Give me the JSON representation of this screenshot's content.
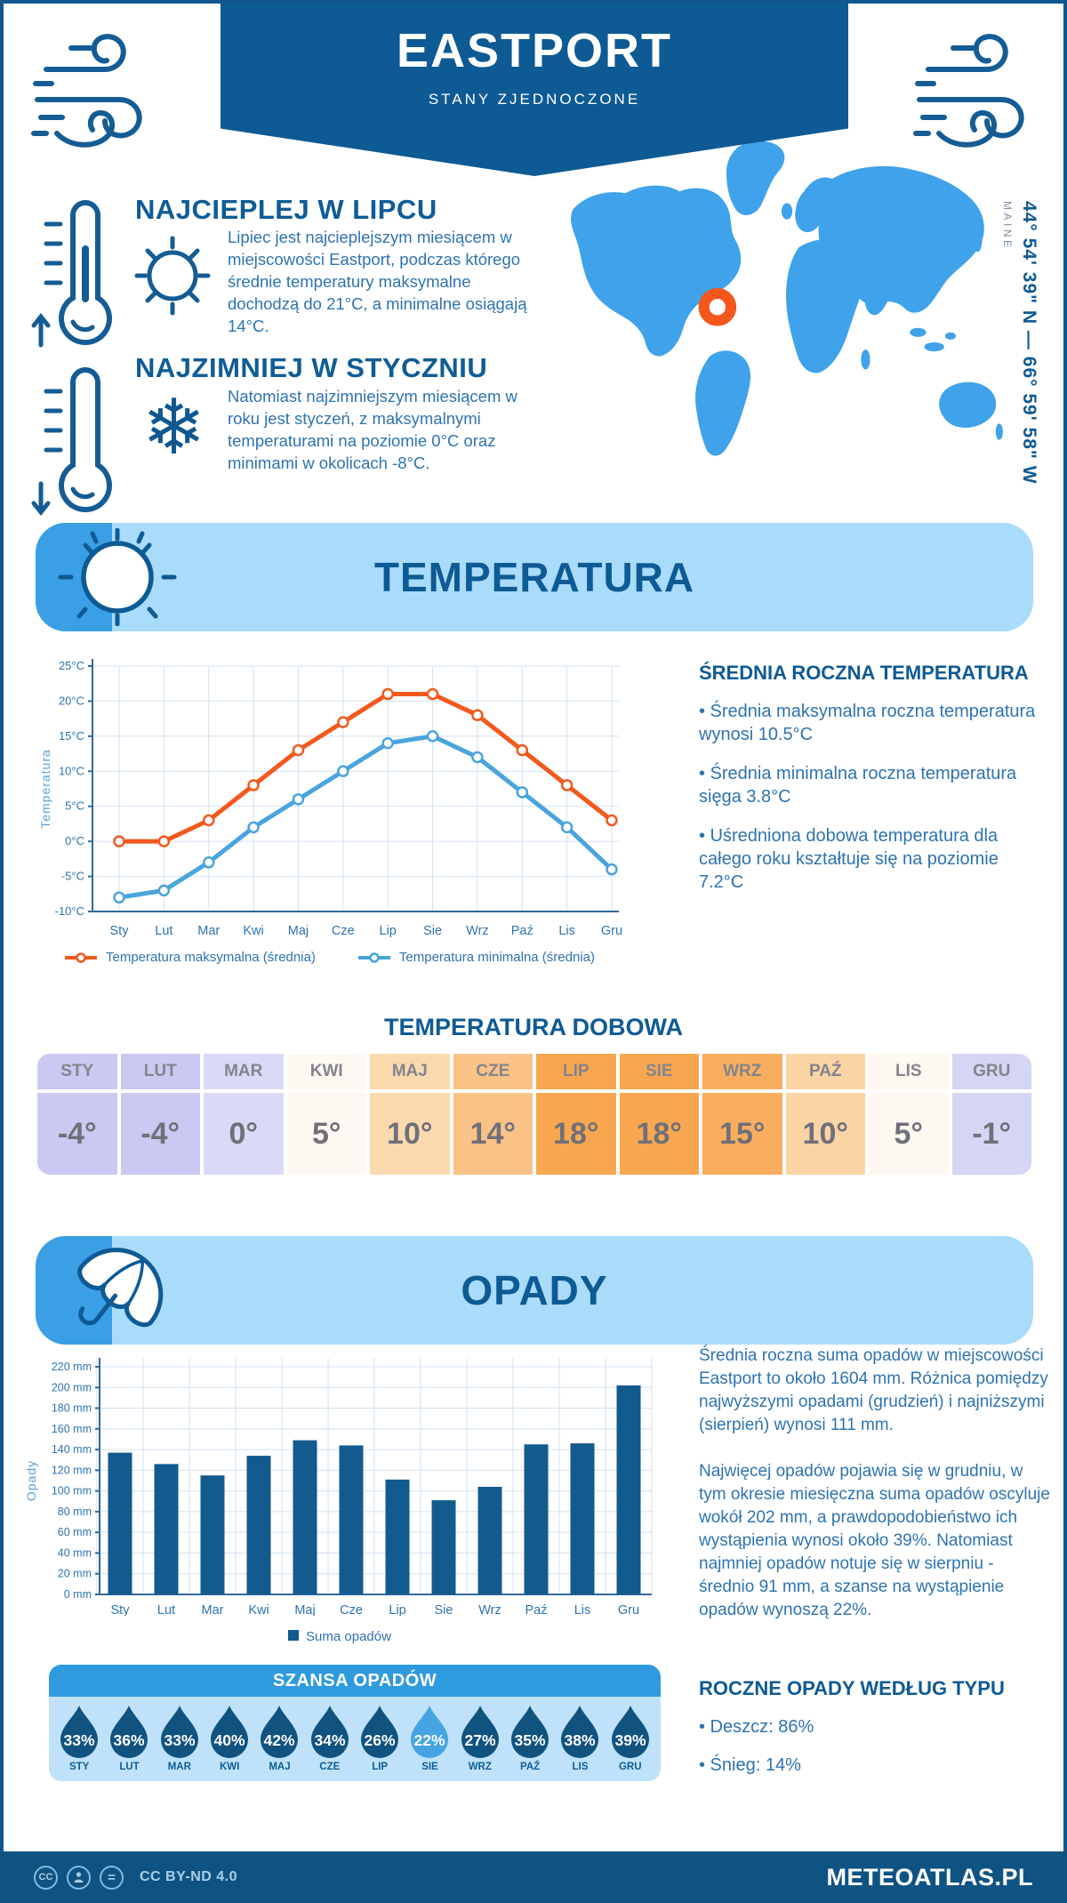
{
  "colors": {
    "brand": "#0e5a94",
    "medium_blue": "#3b9fe6",
    "light_banner": "#a9dbfa",
    "body_text": "#2e73b0",
    "map_land": "#3fa2ea",
    "marker": "#f4571c",
    "bar": "#135a8e",
    "droplet": "#11527f",
    "droplet_highlight": "#47a4e2",
    "footer_bg": "#0f5383",
    "orange_line": "#f4581d",
    "blue_line": "#4aa4dd"
  },
  "header": {
    "title": "EASTPORT",
    "subtitle": "STANY ZJEDNOCZONE"
  },
  "warm": {
    "title": "NAJCIEPLEJ W LIPCU",
    "text": "Lipiec jest najcieplejszym miesiącem w miejscowości Eastport, podczas którego średnie temperatury maksymalne dochodzą do 21°C, a minimalne osiągają 14°C."
  },
  "cold": {
    "title": "NAJZIMNIEJ W STYCZNIU",
    "text": "Natomiast najzimniejszym miesiącem w roku jest styczeń, z maksymalnymi temperaturami na poziomie 0°C oraz minimami w okolicach -8°C."
  },
  "map": {
    "coordinates": "44° 54' 39\" N — 66° 59' 58\" W",
    "region": "MAINE"
  },
  "temperature": {
    "banner_title": "TEMPERATURA",
    "summary_title": "ŚREDNIA ROCZNA TEMPERATURA",
    "summary_bullets": [
      "• Średnia maksymalna roczna temperatura wynosi 10.5°C",
      "• Średnia minimalna roczna temperatura sięga 3.8°C",
      "• Uśredniona dobowa temperatura dla całego roku kształtuje się na poziomie 7.2°C"
    ],
    "daily_title": "TEMPERATURA DOBOWA",
    "daily": {
      "months": [
        "STY",
        "LUT",
        "MAR",
        "KWI",
        "MAJ",
        "CZE",
        "LIP",
        "SIE",
        "WRZ",
        "PAŹ",
        "LIS",
        "GRU"
      ],
      "values": [
        "-4°",
        "-4°",
        "0°",
        "5°",
        "10°",
        "14°",
        "18°",
        "18°",
        "15°",
        "10°",
        "5°",
        "-1°"
      ],
      "colors": [
        "#c9c9f1",
        "#c9c9f1",
        "#dadaf6",
        "#fdf8f2",
        "#fbd9ae",
        "#fac286",
        "#f8a750",
        "#f8a750",
        "#f9ae5f",
        "#fbd4a6",
        "#fdf8f1",
        "#d5d5f4"
      ]
    }
  },
  "precipitation": {
    "banner_title": "OPADY",
    "paragraphs": [
      "Średnia roczna suma opadów w miejscowości Eastport to około 1604 mm. Różnica pomiędzy najwyższymi opadami (grudzień) i najniższymi (sierpień) wynosi 111 mm.",
      "Najwięcej opadów pojawia się w grudniu, w tym okresie miesięczna suma opadów oscyluje wokół 202 mm, a prawdopodobieństwo ich wystąpienia wynosi około 39%. Natomiast najmniej opadów notuje się w sierpniu - średnio 91 mm, a szanse na wystąpienie opadów wynoszą 22%."
    ],
    "chance_title": "SZANSA OPADÓW",
    "chance": {
      "months": [
        "STY",
        "LUT",
        "MAR",
        "KWI",
        "MAJ",
        "CZE",
        "LIP",
        "SIE",
        "WRZ",
        "PAŹ",
        "LIS",
        "GRU"
      ],
      "values": [
        "33%",
        "36%",
        "33%",
        "40%",
        "42%",
        "34%",
        "26%",
        "22%",
        "27%",
        "35%",
        "38%",
        "39%"
      ],
      "highlight_index": 7
    },
    "type_title": "ROCZNE OPADY WEDŁUG TYPU",
    "type_bullets": [
      "• Deszcz: 86%",
      "• Śnieg: 14%"
    ]
  },
  "footer": {
    "license": "CC BY-ND 4.0",
    "site": "METEOATLAS.PL"
  },
  "chart_data": [
    {
      "type": "line",
      "title": "Temperatura",
      "categories": [
        "Sty",
        "Lut",
        "Mar",
        "Kwi",
        "Maj",
        "Cze",
        "Lip",
        "Sie",
        "Wrz",
        "Paź",
        "Lis",
        "Gru"
      ],
      "series": [
        {
          "name": "Temperatura maksymalna (średnia)",
          "color": "#f4581d",
          "values": [
            0,
            0,
            3,
            8,
            13,
            17,
            21,
            21,
            18,
            13,
            8,
            3
          ]
        },
        {
          "name": "Temperatura minimalna (średnia)",
          "color": "#4aa4dd",
          "values": [
            -8,
            -7,
            -3,
            2,
            6,
            10,
            14,
            15,
            12,
            7,
            2,
            -4
          ]
        }
      ],
      "ylabel": "Temperatura",
      "yticks": [
        25,
        20,
        15,
        10,
        5,
        0,
        -5,
        -10
      ],
      "ytick_suffix": "°C",
      "ylim": [
        -10,
        25
      ],
      "grid": true,
      "legend_position": "bottom"
    },
    {
      "type": "bar",
      "title": "Opady",
      "categories": [
        "Sty",
        "Lut",
        "Mar",
        "Kwi",
        "Maj",
        "Cze",
        "Lip",
        "Sie",
        "Wrz",
        "Paź",
        "Lis",
        "Gru"
      ],
      "values": [
        137,
        126,
        115,
        134,
        149,
        144,
        111,
        91,
        104,
        145,
        146,
        202
      ],
      "bar_color": "#135a8e",
      "ylabel": "Opady",
      "yticks": [
        0,
        20,
        40,
        60,
        80,
        100,
        120,
        140,
        160,
        180,
        200,
        220
      ],
      "ytick_suffix": " mm",
      "ylim": [
        0,
        220
      ],
      "grid": true,
      "legend": [
        "Suma opadów"
      ],
      "legend_position": "bottom"
    }
  ]
}
